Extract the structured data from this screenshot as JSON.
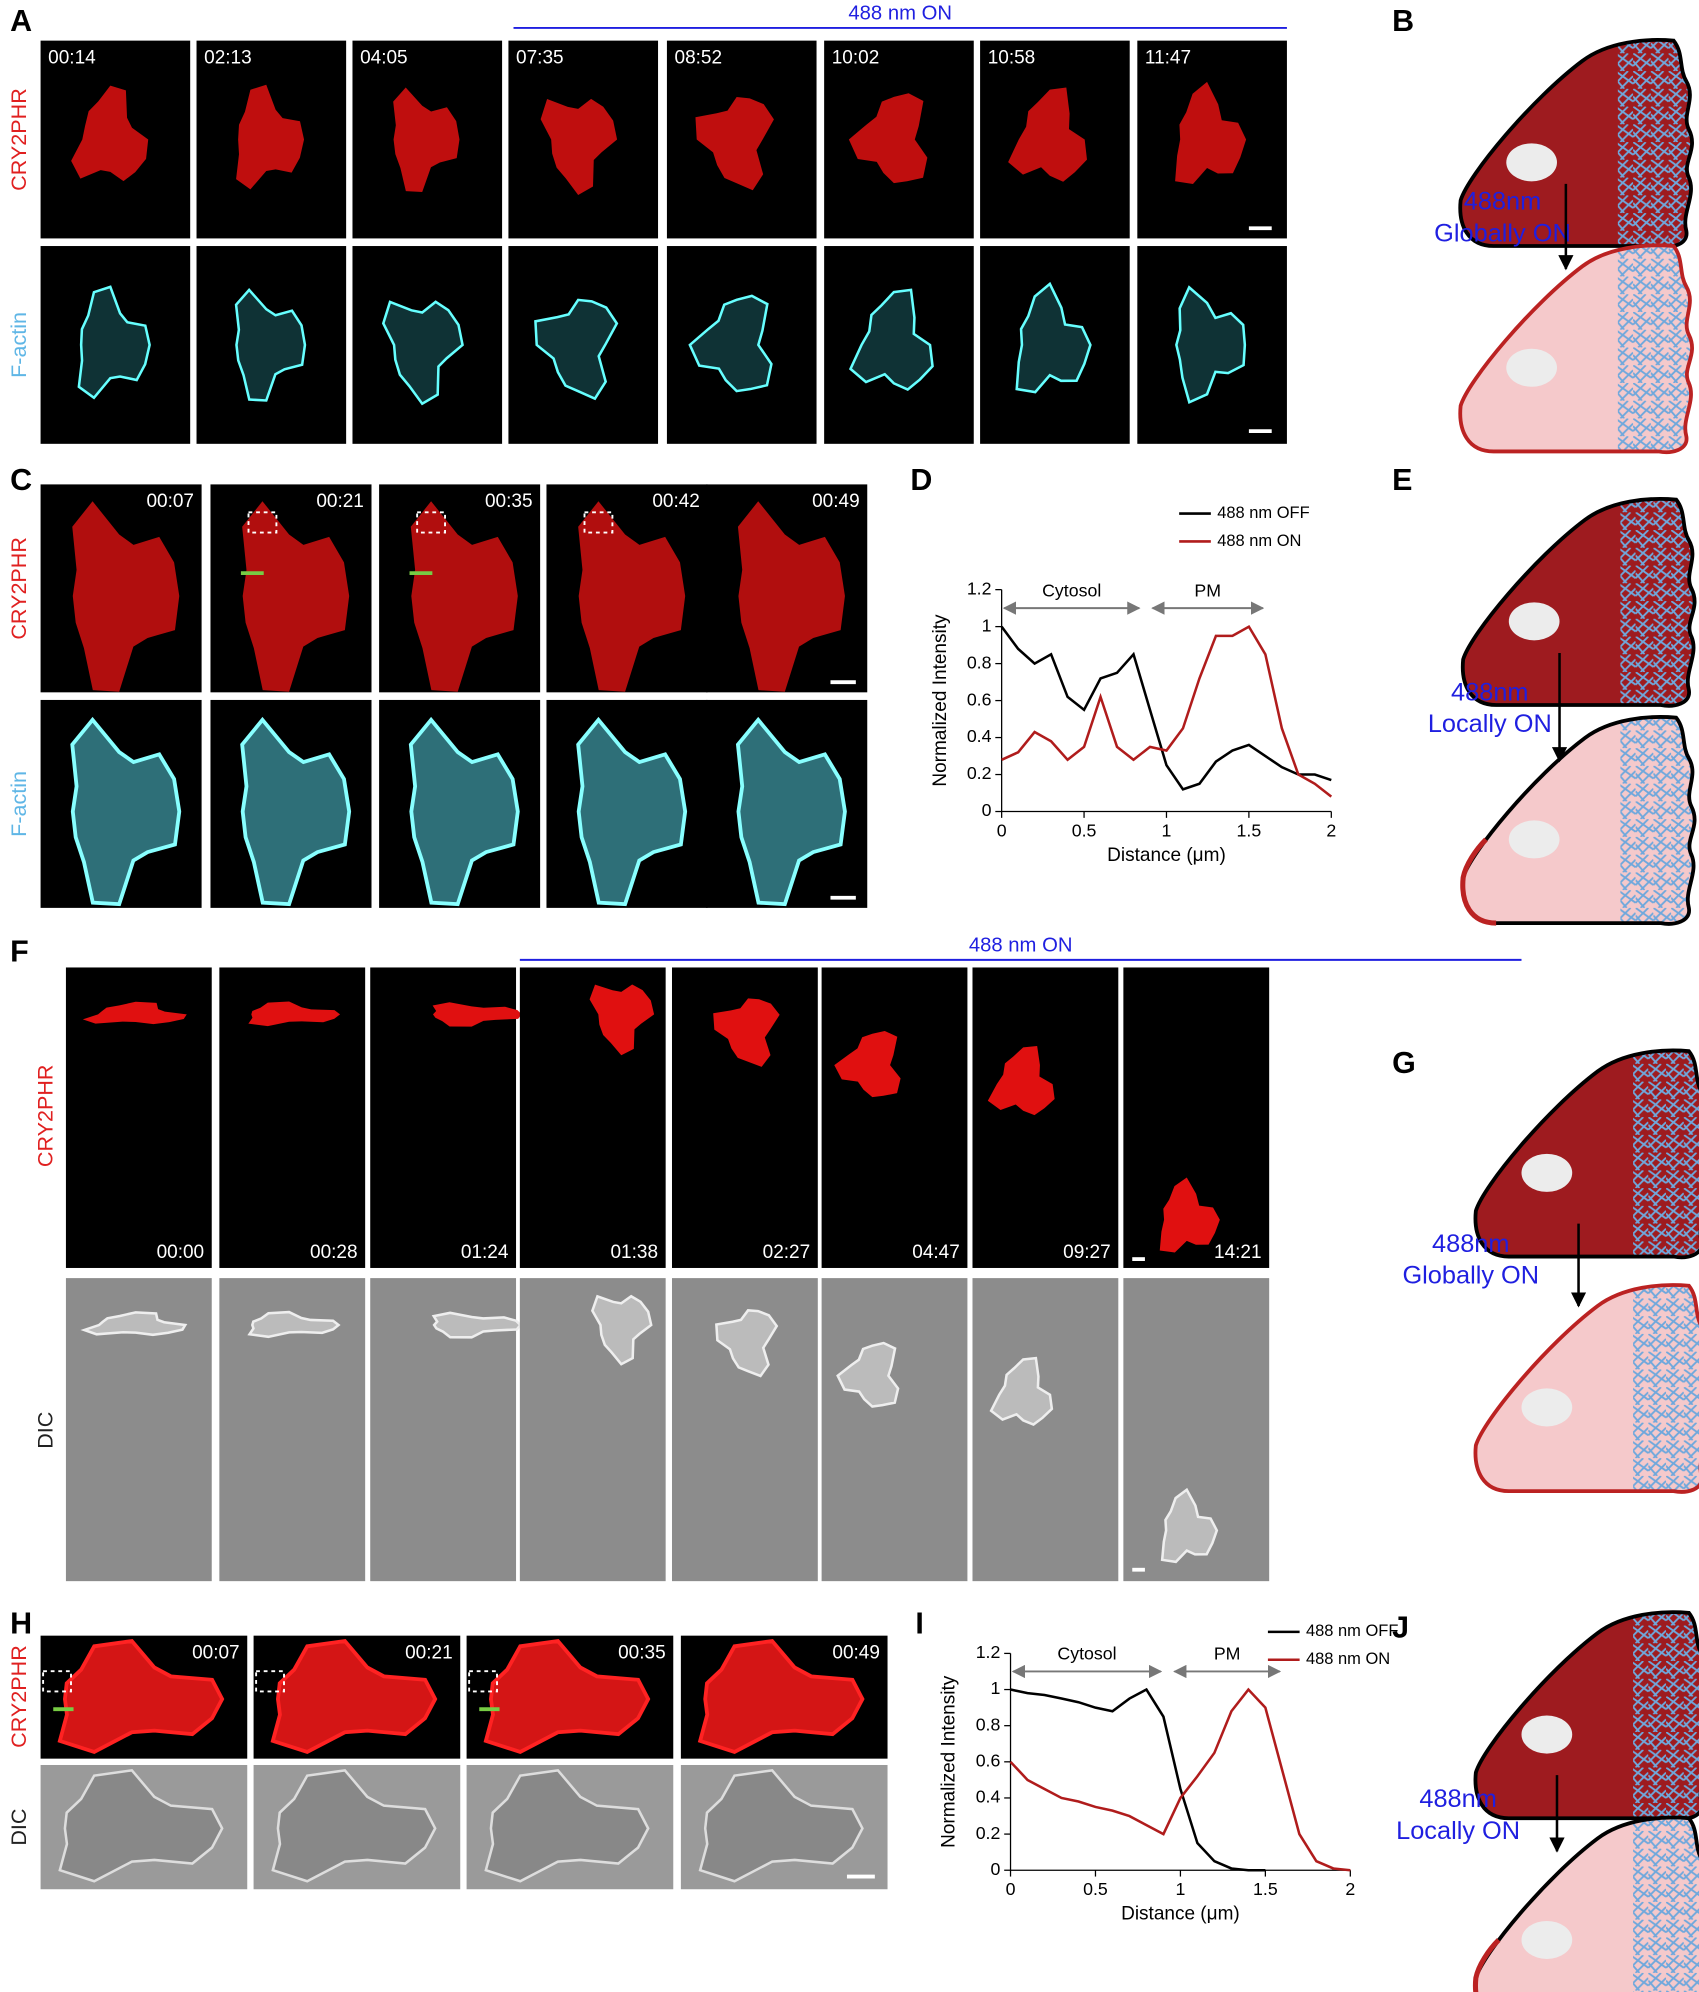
{
  "panels": {
    "A": {
      "letter": "A",
      "banner": "488 nm ON",
      "row_labels": [
        "CRY2PHR",
        "F-actin"
      ],
      "timestamps": [
        "00:14",
        "02:13",
        "04:05",
        "07:35",
        "08:52",
        "10:02",
        "10:58",
        "11:47"
      ]
    },
    "B": {
      "letter": "B",
      "light": [
        "488nm",
        "Globally ON"
      ]
    },
    "C": {
      "letter": "C",
      "row_labels": [
        "CRY2PHR",
        "F-actin"
      ],
      "timestamps": [
        "00:07",
        "00:21",
        "00:35",
        "00:42",
        "00:49"
      ]
    },
    "D": {
      "letter": "D"
    },
    "E": {
      "letter": "E",
      "light": [
        "488nm",
        "Locally ON"
      ]
    },
    "F": {
      "letter": "F",
      "banner": "488 nm ON",
      "row_labels": [
        "CRY2PHR",
        "DIC"
      ],
      "timestamps": [
        "00:00",
        "00:28",
        "01:24",
        "01:38",
        "02:27",
        "04:47",
        "09:27",
        "14:21"
      ]
    },
    "G": {
      "letter": "G",
      "light": [
        "488nm",
        "Globally ON"
      ]
    },
    "H": {
      "letter": "H",
      "row_labels": [
        "CRY2PHR",
        "DIC"
      ],
      "timestamps": [
        "00:07",
        "00:21",
        "00:35",
        "00:49"
      ]
    },
    "I": {
      "letter": "I"
    },
    "J": {
      "letter": "J",
      "light": [
        "488nm",
        "Locally ON"
      ]
    }
  },
  "chart_data": [
    {
      "type": "line",
      "xlabel": "Distance (μm)",
      "ylabel": "Normalized Intensity",
      "x": [
        0,
        0.1,
        0.2,
        0.3,
        0.4,
        0.5,
        0.6,
        0.7,
        0.8,
        0.9,
        1.0,
        1.1,
        1.2,
        1.3,
        1.4,
        1.5,
        1.6,
        1.7,
        1.8,
        1.9,
        2.0
      ],
      "series": [
        {
          "name": "488 nm OFF",
          "color": "#000000",
          "values": [
            1.0,
            0.88,
            0.8,
            0.85,
            0.62,
            0.55,
            0.72,
            0.75,
            0.85,
            0.55,
            0.25,
            0.12,
            0.15,
            0.27,
            0.33,
            0.36,
            0.3,
            0.24,
            0.2,
            0.2,
            0.17
          ]
        },
        {
          "name": "488 nm ON",
          "color": "#b01c1c",
          "values": [
            0.28,
            0.32,
            0.43,
            0.38,
            0.28,
            0.35,
            0.62,
            0.35,
            0.28,
            0.35,
            0.33,
            0.45,
            0.72,
            0.95,
            0.95,
            1.0,
            0.85,
            0.45,
            0.2,
            0.15,
            0.08
          ]
        }
      ],
      "xlim": [
        0,
        2
      ],
      "xticks": [
        0,
        0.5,
        1,
        1.5,
        2
      ],
      "ylim": [
        0,
        1.2
      ],
      "yticks": [
        0,
        0.2,
        0.4,
        0.6,
        0.8,
        1,
        1.2
      ],
      "legend": "upper right",
      "annotations": [
        {
          "text": "Cytosol",
          "span": [
            0,
            0.85
          ],
          "y": 1.1
        },
        {
          "text": "PM",
          "span": [
            0.9,
            1.6
          ],
          "y": 1.1
        }
      ]
    },
    {
      "type": "line",
      "xlabel": "Distance (μm)",
      "ylabel": "Normalized Intensity",
      "x": [
        0,
        0.1,
        0.2,
        0.3,
        0.4,
        0.5,
        0.6,
        0.7,
        0.8,
        0.9,
        1.0,
        1.1,
        1.2,
        1.3,
        1.4,
        1.5,
        1.6,
        1.7,
        1.8,
        1.9,
        2.0
      ],
      "series": [
        {
          "name": "488 nm OFF",
          "color": "#000000",
          "values": [
            1.0,
            0.98,
            0.97,
            0.95,
            0.93,
            0.9,
            0.88,
            0.95,
            1.0,
            0.85,
            0.45,
            0.15,
            0.05,
            0.01,
            0,
            0,
            null,
            null,
            null,
            null,
            null
          ]
        },
        {
          "name": "488 nm ON",
          "color": "#b01c1c",
          "values": [
            0.6,
            0.5,
            0.45,
            0.4,
            0.38,
            0.35,
            0.33,
            0.3,
            0.25,
            0.2,
            0.4,
            0.52,
            0.65,
            0.88,
            1.0,
            0.9,
            0.55,
            0.2,
            0.05,
            0.01,
            0
          ]
        }
      ],
      "xlim": [
        0,
        2
      ],
      "xticks": [
        0,
        0.5,
        1,
        1.5,
        2
      ],
      "ylim": [
        0,
        1.2
      ],
      "yticks": [
        0,
        0.2,
        0.4,
        0.6,
        0.8,
        1,
        1.2
      ],
      "legend": "upper right",
      "annotations": [
        {
          "text": "Cytosol",
          "span": [
            0,
            0.9
          ],
          "y": 1.1
        },
        {
          "text": "PM",
          "span": [
            0.95,
            1.6
          ],
          "y": 1.1
        }
      ]
    }
  ]
}
